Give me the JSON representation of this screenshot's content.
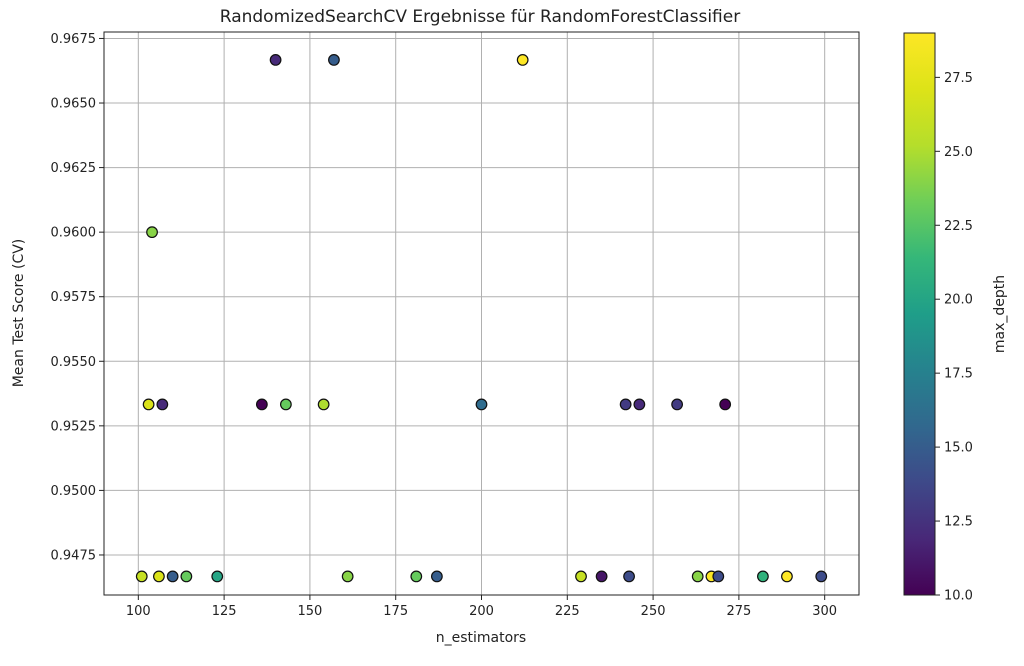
{
  "chart_data": {
    "type": "scatter",
    "title": "RandomizedSearchCV Ergebnisse für RandomForestClassifier",
    "xlabel": "n_estimators",
    "ylabel": "Mean Test Score (CV)",
    "xlim": [
      90,
      310
    ],
    "ylim": [
      0.94595,
      0.96775
    ],
    "xticks": [
      100,
      125,
      150,
      175,
      200,
      225,
      250,
      275,
      300
    ],
    "xtick_labels": [
      "100",
      "125",
      "150",
      "175",
      "200",
      "225",
      "250",
      "275",
      "300"
    ],
    "yticks": [
      0.9475,
      0.95,
      0.9525,
      0.955,
      0.9575,
      0.96,
      0.9625,
      0.965,
      0.9675
    ],
    "ytick_labels": [
      "0.9475",
      "0.9500",
      "0.9525",
      "0.9550",
      "0.9575",
      "0.9600",
      "0.9625",
      "0.9650",
      "0.9675"
    ],
    "grid": true,
    "colorbar": {
      "label": "max_depth",
      "range": [
        10.0,
        29.0
      ],
      "ticks": [
        10.0,
        12.5,
        15.0,
        17.5,
        20.0,
        22.5,
        25.0,
        27.5
      ],
      "tick_labels": [
        "10.0",
        "12.5",
        "15.0",
        "17.5",
        "20.0",
        "22.5",
        "25.0",
        "27.5"
      ],
      "colormap": "viridis"
    },
    "points": [
      {
        "x": 140,
        "y": 0.96667,
        "c": 12
      },
      {
        "x": 157,
        "y": 0.96667,
        "c": 15
      },
      {
        "x": 212,
        "y": 0.96667,
        "c": 29
      },
      {
        "x": 104,
        "y": 0.96,
        "c": 24
      },
      {
        "x": 103,
        "y": 0.95333,
        "c": 27
      },
      {
        "x": 107,
        "y": 0.95333,
        "c": 12
      },
      {
        "x": 136,
        "y": 0.95333,
        "c": 10
      },
      {
        "x": 143,
        "y": 0.95333,
        "c": 23
      },
      {
        "x": 154,
        "y": 0.95333,
        "c": 25
      },
      {
        "x": 200,
        "y": 0.95333,
        "c": 16
      },
      {
        "x": 242,
        "y": 0.95333,
        "c": 13
      },
      {
        "x": 246,
        "y": 0.95333,
        "c": 12
      },
      {
        "x": 257,
        "y": 0.95333,
        "c": 13
      },
      {
        "x": 271,
        "y": 0.95333,
        "c": 10
      },
      {
        "x": 101,
        "y": 0.94667,
        "c": 26
      },
      {
        "x": 106,
        "y": 0.94667,
        "c": 27
      },
      {
        "x": 110,
        "y": 0.94667,
        "c": 15
      },
      {
        "x": 114,
        "y": 0.94667,
        "c": 23
      },
      {
        "x": 123,
        "y": 0.94667,
        "c": 20
      },
      {
        "x": 161,
        "y": 0.94667,
        "c": 24
      },
      {
        "x": 181,
        "y": 0.94667,
        "c": 23
      },
      {
        "x": 187,
        "y": 0.94667,
        "c": 15
      },
      {
        "x": 229,
        "y": 0.94667,
        "c": 26
      },
      {
        "x": 235,
        "y": 0.94667,
        "c": 11
      },
      {
        "x": 243,
        "y": 0.94667,
        "c": 14
      },
      {
        "x": 263,
        "y": 0.94667,
        "c": 24
      },
      {
        "x": 267,
        "y": 0.94667,
        "c": 29
      },
      {
        "x": 269,
        "y": 0.94667,
        "c": 14
      },
      {
        "x": 282,
        "y": 0.94667,
        "c": 21
      },
      {
        "x": 289,
        "y": 0.94667,
        "c": 29
      },
      {
        "x": 299,
        "y": 0.94667,
        "c": 14
      }
    ]
  }
}
